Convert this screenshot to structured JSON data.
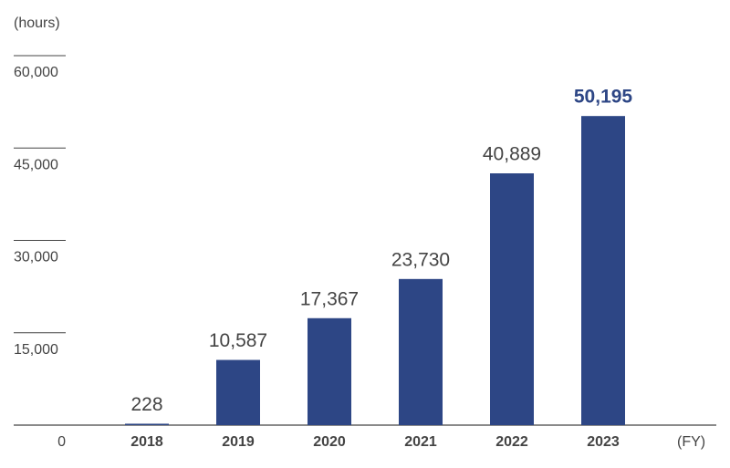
{
  "chart_data": {
    "type": "bar",
    "y_label": "(hours)",
    "x_label": "(FY)",
    "categories": [
      "2018",
      "2019",
      "2020",
      "2021",
      "2022",
      "2023"
    ],
    "values": [
      228,
      10587,
      17367,
      23730,
      40889,
      50195
    ],
    "value_labels": [
      "228",
      "10,587",
      "17,367",
      "23,730",
      "40,889",
      "50,195"
    ],
    "color": "#2d4685",
    "highlight_index": 5,
    "ylim": [
      0,
      60000
    ],
    "yticks": [
      0,
      {
        "value": 15000,
        "label": "15,000"
      },
      {
        "value": 30000,
        "label": "30,000"
      },
      {
        "value": 45000,
        "label": "45,000"
      },
      {
        "value": 60000,
        "label": "60,000"
      }
    ]
  }
}
